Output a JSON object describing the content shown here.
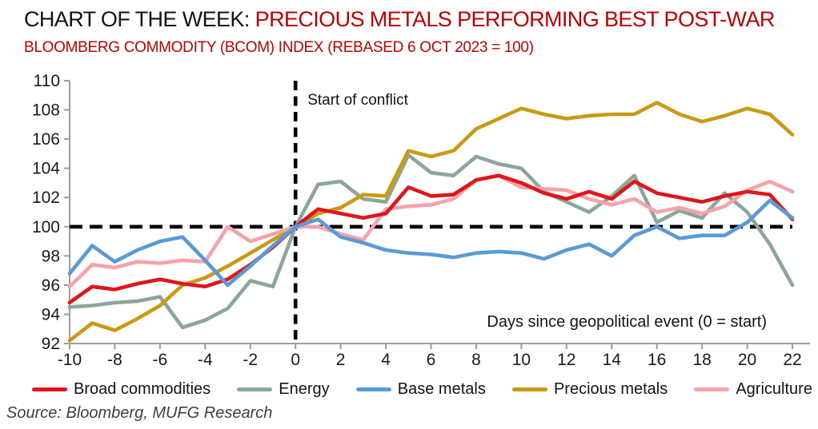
{
  "header": {
    "title_black": "CHART OF THE WEEK: ",
    "title_red": "PRECIOUS METALS PERFORMING BEST POST-WAR",
    "subtitle": "BLOOMBERG COMMODITY (BCOM) INDEX (REBASED 6 OCT 2023 = 100)"
  },
  "chart_data": {
    "type": "line",
    "x": [
      -10,
      -9,
      -8,
      -7,
      -6,
      -5,
      -4,
      -3,
      -2,
      -1,
      0,
      1,
      2,
      3,
      4,
      5,
      6,
      7,
      8,
      9,
      10,
      11,
      12,
      13,
      14,
      15,
      16,
      17,
      18,
      19,
      20,
      21,
      22
    ],
    "series": [
      {
        "name": "Broad commodities",
        "color": "#E0161D",
        "values": [
          94.8,
          95.9,
          95.7,
          96.1,
          96.4,
          96.1,
          95.9,
          96.4,
          97.4,
          98.6,
          100.0,
          101.2,
          100.9,
          100.6,
          100.9,
          102.7,
          102.1,
          102.2,
          103.2,
          103.5,
          103.0,
          102.3,
          101.9,
          102.4,
          101.9,
          103.1,
          102.3,
          102.0,
          101.7,
          102.1,
          102.4,
          102.2,
          100.5
        ]
      },
      {
        "name": "Energy",
        "color": "#8CA797",
        "values": [
          94.5,
          94.6,
          94.8,
          94.9,
          95.2,
          93.1,
          93.6,
          94.4,
          96.3,
          95.9,
          100.0,
          102.9,
          103.1,
          101.9,
          101.7,
          104.9,
          103.7,
          103.5,
          104.8,
          104.3,
          104.0,
          102.4,
          101.7,
          101.0,
          102.1,
          103.5,
          100.3,
          101.1,
          100.6,
          102.3,
          101.0,
          98.8,
          96.0
        ]
      },
      {
        "name": "Base metals",
        "color": "#5B9BD5",
        "values": [
          96.8,
          98.7,
          97.6,
          98.4,
          99.0,
          99.3,
          97.7,
          96.0,
          97.3,
          98.7,
          100.0,
          100.5,
          99.3,
          98.9,
          98.4,
          98.2,
          98.1,
          97.9,
          98.2,
          98.3,
          98.2,
          97.8,
          98.4,
          98.8,
          98.0,
          99.4,
          100.0,
          99.2,
          99.4,
          99.4,
          100.3,
          101.8,
          100.6
        ]
      },
      {
        "name": "Precious metals",
        "color": "#C99A16",
        "values": [
          92.2,
          93.4,
          92.9,
          93.7,
          94.6,
          96.0,
          96.5,
          97.3,
          98.2,
          99.1,
          100.0,
          100.9,
          101.3,
          102.2,
          102.1,
          105.2,
          104.8,
          105.2,
          106.7,
          107.4,
          108.1,
          107.7,
          107.4,
          107.6,
          107.7,
          107.7,
          108.5,
          107.7,
          107.2,
          107.6,
          108.1,
          107.7,
          106.3
        ]
      },
      {
        "name": "Agriculture",
        "color": "#F5A2A9",
        "values": [
          95.9,
          97.4,
          97.2,
          97.6,
          97.5,
          97.7,
          97.6,
          100.0,
          99.0,
          99.5,
          100.0,
          100.0,
          99.5,
          99.1,
          101.2,
          101.4,
          101.5,
          101.9,
          103.2,
          103.5,
          102.7,
          102.6,
          102.5,
          101.9,
          101.5,
          101.9,
          101.0,
          101.3,
          100.9,
          101.4,
          102.5,
          103.1,
          102.4
        ]
      }
    ],
    "ylim": [
      92,
      110
    ],
    "ytick_step": 2,
    "xlim": [
      -10,
      22
    ],
    "xtick_step": 2,
    "xlabel": "Days since geopolitical event (0 = start)",
    "grid": false,
    "legend_position": "bottom",
    "annotations": {
      "vline_x": 0,
      "vline_label": "Start of conflict",
      "hline_y": 100
    }
  },
  "source": "Source: Bloomberg, MUFG Research",
  "style_colors": {
    "title_red": "#C00000",
    "axis": "#9C9C9C",
    "tick_text": "#1A1A1A",
    "dashed_line": "#000000",
    "source_text": "#3F3F3F"
  }
}
